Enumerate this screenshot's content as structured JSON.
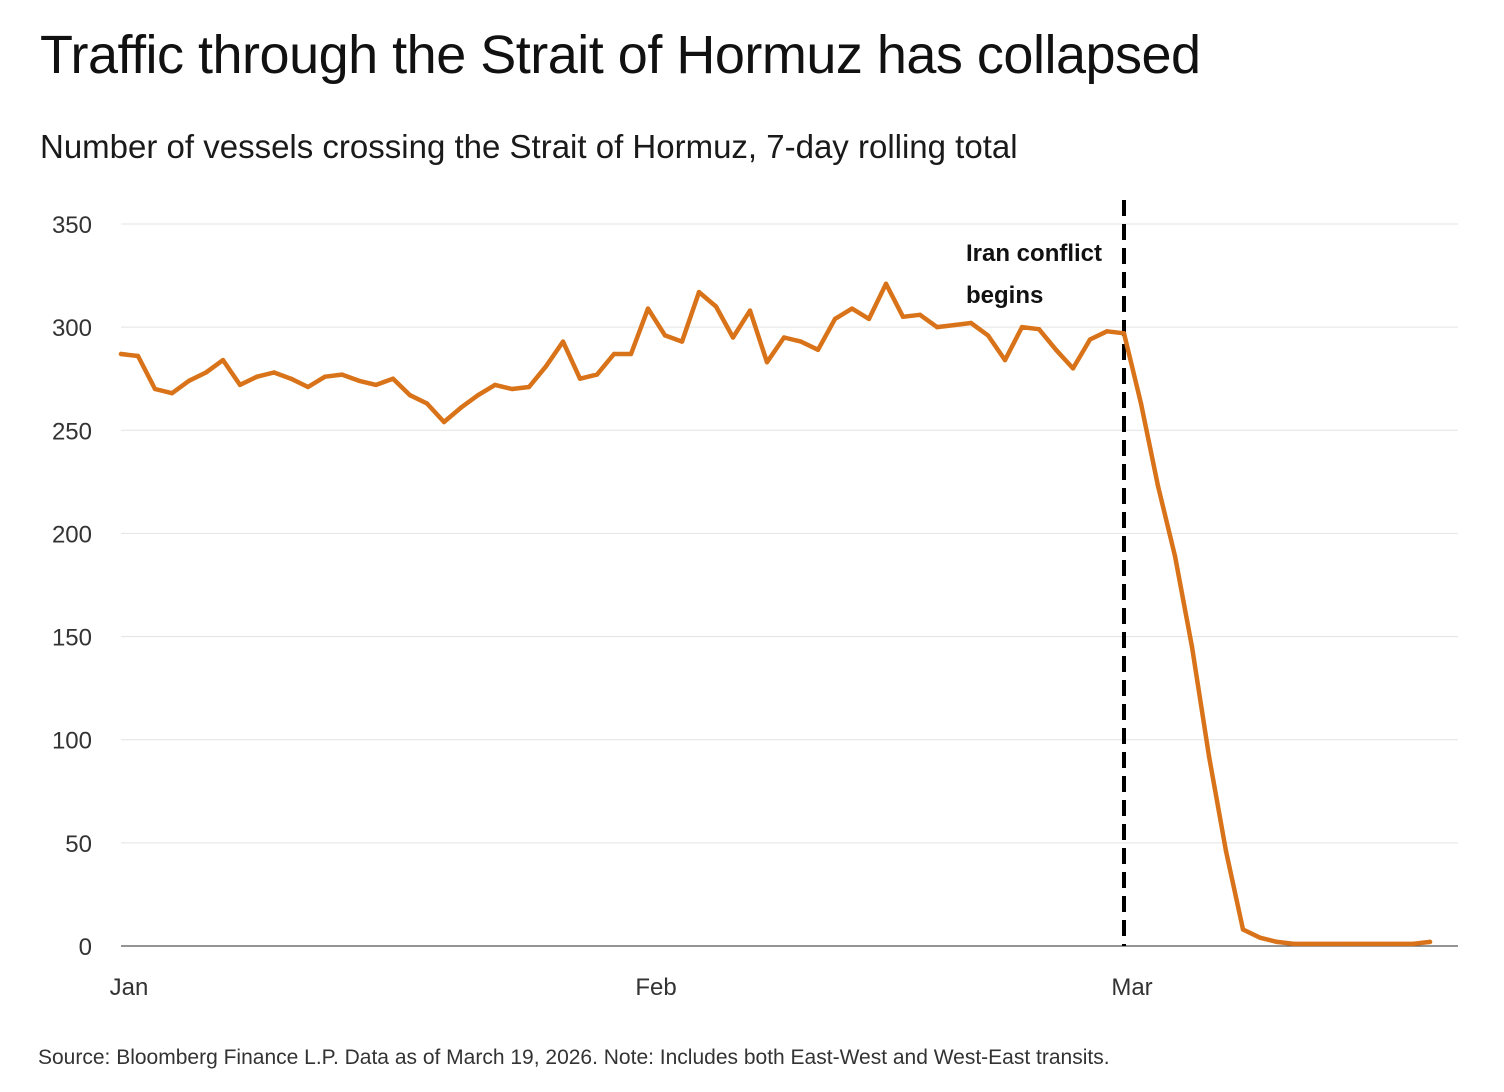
{
  "chart_data": {
    "type": "line",
    "title": "Traffic through the Strait of Hormuz has collapsed",
    "subtitle": "Number of vessels crossing the Strait of Hormuz, 7-day rolling total",
    "source": "Source: Bloomberg Finance L.P. Data as of March 19, 2026. Note: Includes both East-West and West-East transits.",
    "ylim": [
      0,
      350
    ],
    "yticks": [
      0,
      50,
      100,
      150,
      200,
      250,
      300,
      350
    ],
    "xlim": [
      "2026-01-01",
      "2026-03-19"
    ],
    "xticks": [
      {
        "date": "2026-01-01",
        "label": "Jan"
      },
      {
        "date": "2026-02-01",
        "label": "Feb"
      },
      {
        "date": "2026-03-01",
        "label": "Mar"
      }
    ],
    "grid": true,
    "line_color": "#d9731a",
    "series": [
      {
        "x": [
          "2026-01-01",
          "2026-01-02",
          "2026-01-03",
          "2026-01-04",
          "2026-01-05",
          "2026-01-06",
          "2026-01-07",
          "2026-01-08",
          "2026-01-09",
          "2026-01-10",
          "2026-01-11",
          "2026-01-12",
          "2026-01-13",
          "2026-01-14",
          "2026-01-15",
          "2026-01-16",
          "2026-01-17",
          "2026-01-18",
          "2026-01-19",
          "2026-01-20",
          "2026-01-21",
          "2026-01-22",
          "2026-01-23",
          "2026-01-24",
          "2026-01-25",
          "2026-01-26",
          "2026-01-27",
          "2026-01-28",
          "2026-01-29",
          "2026-01-30",
          "2026-01-31",
          "2026-02-01",
          "2026-02-02",
          "2026-02-03",
          "2026-02-04",
          "2026-02-05",
          "2026-02-06",
          "2026-02-07",
          "2026-02-08",
          "2026-02-09",
          "2026-02-10",
          "2026-02-11",
          "2026-02-12",
          "2026-02-13",
          "2026-02-14",
          "2026-02-15",
          "2026-02-16",
          "2026-02-17",
          "2026-02-18",
          "2026-02-19",
          "2026-02-20",
          "2026-02-21",
          "2026-02-22",
          "2026-02-23",
          "2026-02-24",
          "2026-02-25",
          "2026-02-26",
          "2026-02-27",
          "2026-02-28",
          "2026-03-01",
          "2026-03-02",
          "2026-03-03",
          "2026-03-04",
          "2026-03-05",
          "2026-03-06",
          "2026-03-07",
          "2026-03-08",
          "2026-03-09",
          "2026-03-10",
          "2026-03-11",
          "2026-03-12",
          "2026-03-13",
          "2026-03-14",
          "2026-03-15",
          "2026-03-16",
          "2026-03-17",
          "2026-03-18",
          "2026-03-19"
        ],
        "values": [
          287,
          286,
          270,
          268,
          274,
          278,
          284,
          272,
          276,
          278,
          275,
          271,
          276,
          277,
          274,
          272,
          275,
          267,
          263,
          254,
          261,
          267,
          272,
          270,
          271,
          281,
          293,
          275,
          277,
          287,
          287,
          309,
          296,
          293,
          317,
          310,
          295,
          308,
          283,
          295,
          293,
          289,
          304,
          309,
          304,
          321,
          305,
          306,
          300,
          301,
          302,
          296,
          284,
          300,
          299,
          289,
          280,
          294,
          298,
          297,
          263,
          223,
          189,
          145,
          92,
          46,
          8,
          4,
          2,
          1,
          1,
          1,
          1,
          1,
          1,
          1,
          1,
          2
        ]
      }
    ],
    "annotations": [
      {
        "date": "2026-03-01",
        "text_lines": [
          "Iran conflict",
          "begins"
        ],
        "style": "dashed-vertical-line"
      }
    ]
  }
}
